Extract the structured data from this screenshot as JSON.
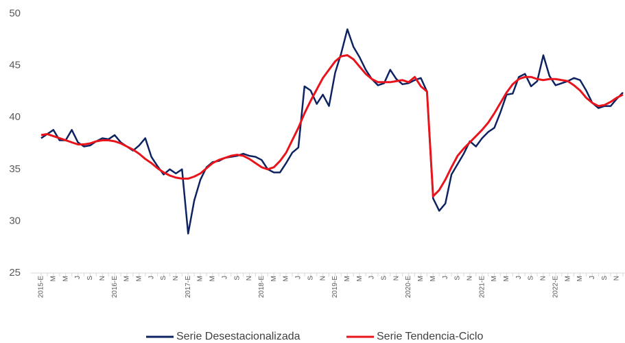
{
  "chart_data": {
    "type": "line",
    "categories": [
      "2015-E",
      null,
      "M",
      null,
      "M",
      null,
      "J",
      null,
      "S",
      null,
      "N",
      null,
      "2016-E",
      null,
      "M",
      null,
      "M",
      null,
      "J",
      null,
      "S",
      null,
      "N",
      null,
      "2017-E",
      null,
      "M",
      null,
      "M",
      null,
      "J",
      null,
      "S",
      null,
      "N",
      null,
      "2018-E",
      null,
      "M",
      null,
      "M",
      null,
      "J",
      null,
      "S",
      null,
      "N",
      null,
      "2019-E",
      null,
      "M",
      null,
      "M",
      null,
      "J",
      null,
      "S",
      null,
      "N",
      null,
      "2020-E",
      null,
      "M",
      null,
      "M",
      null,
      "J",
      null,
      "S",
      null,
      "N",
      null,
      "2021-E",
      null,
      "M",
      null,
      "M",
      null,
      "J",
      null,
      "S",
      null,
      "N",
      null,
      "2022-E",
      null,
      "M",
      null,
      "M",
      null,
      "J",
      null,
      "S",
      null,
      "N",
      null
    ],
    "series": [
      {
        "name": "Serie Desestacionalizada",
        "color": "#0d2260",
        "values": [
          38.0,
          38.4,
          38.8,
          37.8,
          37.8,
          38.8,
          37.6,
          37.2,
          37.3,
          37.7,
          38.0,
          37.9,
          38.3,
          37.6,
          37.2,
          36.8,
          37.3,
          38.0,
          36.2,
          35.3,
          34.5,
          35.0,
          34.6,
          35.0,
          28.8,
          32.0,
          34.0,
          35.2,
          35.7,
          35.8,
          36.1,
          36.2,
          36.3,
          36.5,
          36.3,
          36.2,
          35.9,
          35.0,
          34.7,
          34.7,
          35.6,
          36.6,
          37.1,
          43.0,
          42.6,
          41.3,
          42.2,
          41.1,
          44.3,
          46.2,
          48.5,
          46.8,
          45.8,
          44.6,
          43.7,
          43.1,
          43.3,
          44.6,
          43.7,
          43.2,
          43.3,
          43.6,
          43.8,
          42.5,
          32.2,
          31.0,
          31.7,
          34.5,
          35.5,
          36.5,
          37.7,
          37.2,
          38.0,
          38.6,
          39.0,
          40.5,
          42.2,
          42.3,
          43.9,
          44.2,
          43.0,
          43.5,
          46.0,
          44.0,
          43.1,
          43.3,
          43.5,
          43.8,
          43.6,
          42.6,
          41.4,
          40.9,
          41.1,
          41.1,
          41.8,
          42.4
        ]
      },
      {
        "name": "Serie Tendencia-Ciclo",
        "color": "#e8141b",
        "values": [
          38.3,
          38.4,
          38.2,
          38.0,
          37.8,
          37.6,
          37.4,
          37.4,
          37.5,
          37.7,
          37.8,
          37.8,
          37.7,
          37.5,
          37.2,
          36.9,
          36.5,
          36.0,
          35.6,
          35.1,
          34.7,
          34.4,
          34.2,
          34.1,
          34.1,
          34.3,
          34.6,
          35.1,
          35.6,
          35.9,
          36.1,
          36.3,
          36.4,
          36.3,
          36.0,
          35.6,
          35.2,
          35.0,
          35.2,
          35.8,
          36.6,
          37.8,
          39.0,
          40.4,
          41.6,
          42.7,
          43.8,
          44.6,
          45.4,
          45.9,
          46.0,
          45.6,
          44.9,
          44.2,
          43.7,
          43.4,
          43.4,
          43.4,
          43.5,
          43.6,
          43.4,
          43.9,
          43.0,
          42.5,
          32.4,
          33.0,
          34.0,
          35.2,
          36.3,
          37.0,
          37.6,
          38.2,
          38.8,
          39.5,
          40.4,
          41.4,
          42.4,
          43.2,
          43.7,
          43.9,
          43.9,
          43.7,
          43.6,
          43.7,
          43.7,
          43.6,
          43.5,
          43.1,
          42.6,
          41.9,
          41.4,
          41.1,
          41.2,
          41.5,
          41.9,
          42.2
        ]
      }
    ],
    "ylim": [
      25,
      50
    ],
    "yticks": [
      25,
      30,
      35,
      40,
      45,
      50
    ],
    "grid": false,
    "legend": "bottom"
  }
}
